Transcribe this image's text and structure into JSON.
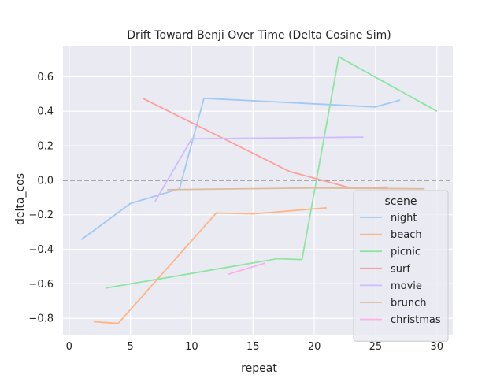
{
  "chart_data": {
    "type": "line",
    "title": "Drift Toward Benji Over Time (Delta Cosine Sim)",
    "xlabel": "repeat",
    "ylabel": "delta_cos",
    "xlim": [
      -0.5,
      31.3
    ],
    "ylim": [
      -0.9,
      0.78
    ],
    "xticks": [
      0,
      5,
      10,
      15,
      20,
      25,
      30
    ],
    "yticks": [
      -0.8,
      -0.6,
      -0.4,
      -0.2,
      0.0,
      0.2,
      0.4,
      0.6
    ],
    "ytick_labels": [
      "−0.8",
      "−0.6",
      "−0.4",
      "−0.2",
      "0.0",
      "0.2",
      "0.4",
      "0.6"
    ],
    "reference_line": {
      "y": 0.0,
      "style": "dashed",
      "color": "#808080"
    },
    "grid": true,
    "legend": {
      "title": "scene",
      "placement": "lower-right"
    },
    "series": [
      {
        "name": "night",
        "color": "#a1c9f4",
        "x": [
          1,
          5,
          9,
          11,
          25,
          27
        ],
        "y": [
          -0.345,
          -0.135,
          -0.05,
          0.475,
          0.425,
          0.465
        ]
      },
      {
        "name": "beach",
        "color": "#ffb482",
        "x": [
          2,
          4,
          12,
          15,
          21
        ],
        "y": [
          -0.82,
          -0.83,
          -0.19,
          -0.195,
          -0.16
        ]
      },
      {
        "name": "picnic",
        "color": "#8de5a1",
        "x": [
          3,
          17,
          19,
          22,
          30
        ],
        "y": [
          -0.625,
          -0.455,
          -0.46,
          0.715,
          0.4
        ]
      },
      {
        "name": "surf",
        "color": "#ff9f9b",
        "x": [
          6,
          18,
          23,
          26
        ],
        "y": [
          0.475,
          0.05,
          -0.045,
          -0.04
        ]
      },
      {
        "name": "movie",
        "color": "#d0bbff",
        "x": [
          7,
          10,
          24
        ],
        "y": [
          -0.125,
          0.24,
          0.25
        ]
      },
      {
        "name": "brunch",
        "color": "#debb9b",
        "x": [
          8,
          20,
          29
        ],
        "y": [
          -0.055,
          -0.045,
          -0.05
        ]
      },
      {
        "name": "christmas",
        "color": "#fab0e4",
        "x": [
          13,
          16
        ],
        "y": [
          -0.545,
          -0.48
        ]
      }
    ]
  }
}
